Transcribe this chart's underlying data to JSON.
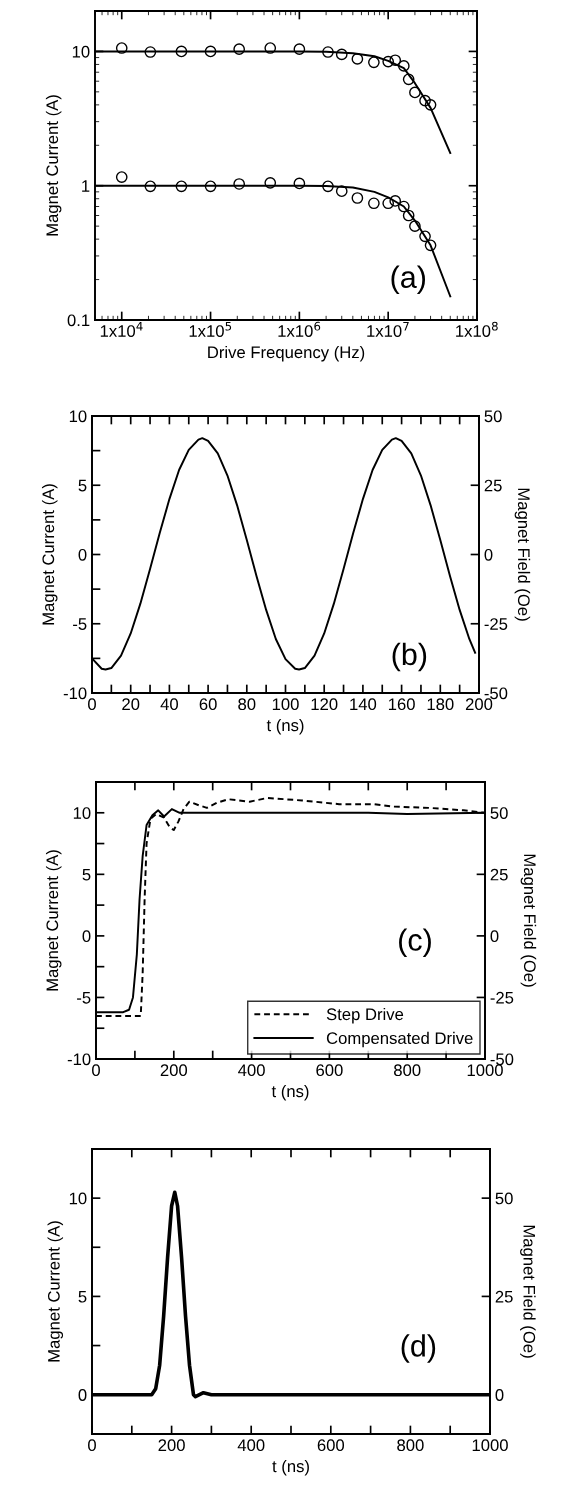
{
  "chart_data": [
    {
      "type": "scatter",
      "log": "xy",
      "xlabel": "Drive Frequency (Hz)",
      "ylabel": "Magnet Current (A)",
      "annotations": [
        "(a)"
      ],
      "xlim": [
        5000,
        100000000
      ],
      "ylim": [
        0.1,
        20
      ],
      "xticks": [
        {
          "value": 10000,
          "label": "1x10$^{4}$"
        },
        {
          "value": 100000,
          "label": "1x10$^{5}$"
        },
        {
          "value": 1000000,
          "label": "1x10$^{6}$"
        },
        {
          "value": 10000000,
          "label": "1x10$^{7}$"
        },
        {
          "value": 100000000,
          "label": "1x10$^{8}$"
        }
      ],
      "yticks": [
        0.1,
        1,
        10
      ],
      "grid": false,
      "legend": false,
      "series": [
        {
          "marker": "circle",
          "color": "#000000",
          "x": [
            10000,
            21000,
            47000,
            100000,
            210000,
            470000,
            1000000,
            2100000,
            3000000,
            4500000,
            6900000,
            10000000,
            12000000,
            15000000,
            17000000,
            20000000,
            26000000,
            30000000
          ],
          "values": [
            10.6,
            9.9,
            10,
            10,
            10.4,
            10.6,
            10.4,
            9.9,
            9.5,
            8.8,
            8.3,
            8.4,
            8.6,
            7.8,
            6.2,
            4.95,
            4.3,
            4.0
          ]
        },
        {
          "marker": "circle",
          "color": "#000000",
          "x": [
            10000,
            21000,
            47000,
            100000,
            210000,
            470000,
            1000000,
            2100000,
            3000000,
            4500000,
            6900000,
            10000000,
            12000000,
            15000000,
            17000000,
            20000000,
            26000000,
            30000000
          ],
          "values": [
            1.16,
            0.99,
            0.99,
            0.99,
            1.03,
            1.05,
            1.04,
            0.99,
            0.91,
            0.81,
            0.74,
            0.74,
            0.77,
            0.7,
            0.6,
            0.5,
            0.42,
            0.36
          ]
        },
        {
          "type": "line",
          "color": "#000000",
          "line_style": "solid",
          "x": [
            5000,
            1000000,
            2000000,
            4000000,
            7000000,
            10000000,
            15000000,
            20000000,
            30000000,
            50000000
          ],
          "values": [
            10,
            10,
            9.95,
            9.7,
            9.2,
            8.5,
            7.5,
            5.8,
            3.8,
            1.75
          ]
        },
        {
          "type": "line",
          "color": "#000000",
          "line_style": "solid",
          "x": [
            5000,
            1000000,
            2000000,
            4000000,
            7000000,
            10000000,
            15000000,
            20000000,
            30000000,
            50000000
          ],
          "values": [
            1,
            1,
            0.995,
            0.97,
            0.9,
            0.82,
            0.7,
            0.55,
            0.36,
            0.15
          ]
        }
      ]
    },
    {
      "type": "line",
      "xlabel": "t (ns)",
      "ylabel": "Magnet Current (A)",
      "y2label": "Magnet Field (Oe)",
      "annotations": [
        "(b)"
      ],
      "xlim": [
        0,
        200
      ],
      "ylim": [
        -10,
        10
      ],
      "y2lim": [
        -50,
        50
      ],
      "xticks": [
        0,
        {
          "value": 10,
          "label": null
        },
        20,
        {
          "value": 30,
          "label": null
        },
        40,
        {
          "value": 50,
          "label": null
        },
        60,
        {
          "value": 70,
          "label": null
        },
        80,
        {
          "value": 90,
          "label": null
        },
        100,
        {
          "value": 110,
          "label": null
        },
        120,
        {
          "value": 130,
          "label": null
        },
        140,
        {
          "value": 150,
          "label": null
        },
        160,
        {
          "value": 170,
          "label": null
        },
        180,
        {
          "value": 190,
          "label": null
        },
        200
      ],
      "yticks": [
        -10,
        {
          "value": -7.5,
          "label": null
        },
        -5,
        {
          "value": -2.5,
          "label": null
        },
        0,
        {
          "value": 2.5,
          "label": null
        },
        5,
        {
          "value": 7.5,
          "label": null
        },
        10
      ],
      "y2ticks": [
        -50,
        -25,
        0,
        25,
        50
      ],
      "grid": false,
      "legend": false,
      "series": [
        {
          "color": "#000000",
          "line_style": "solid",
          "x": [
            0,
            5,
            7,
            10,
            15,
            20,
            25,
            30,
            35,
            40,
            45,
            50,
            55,
            57,
            60,
            65,
            70,
            75,
            80,
            85,
            90,
            95,
            100,
            105,
            107,
            110,
            115,
            120,
            125,
            130,
            135,
            140,
            145,
            150,
            155,
            157,
            160,
            165,
            170,
            175,
            180,
            185,
            190,
            195,
            198
          ],
          "values": [
            -7.5,
            -8.25,
            -8.3,
            -8.2,
            -7.3,
            -5.7,
            -3.55,
            -1.05,
            1.55,
            4.0,
            6.1,
            7.55,
            8.3,
            8.4,
            8.2,
            7.3,
            5.7,
            3.55,
            1.05,
            -1.55,
            -4.0,
            -6.1,
            -7.55,
            -8.25,
            -8.3,
            -8.2,
            -7.3,
            -5.7,
            -3.55,
            -1.05,
            1.55,
            4.0,
            6.1,
            7.55,
            8.3,
            8.4,
            8.2,
            7.3,
            5.7,
            3.55,
            1.05,
            -1.55,
            -4.0,
            -6.1,
            -7.1
          ]
        }
      ]
    },
    {
      "type": "line",
      "xlabel": "t (ns)",
      "ylabel": "Magnet Current (A)",
      "y2label": "Magnet Field (Oe)",
      "annotations": [
        "(c)"
      ],
      "xlim": [
        0,
        1000
      ],
      "ylim": [
        -10,
        12.5
      ],
      "y2lim": [
        -50,
        62.5
      ],
      "xticks": [
        0,
        {
          "value": 100,
          "label": null
        },
        200,
        {
          "value": 300,
          "label": null
        },
        400,
        {
          "value": 500,
          "label": null
        },
        600,
        {
          "value": 700,
          "label": null
        },
        800,
        {
          "value": 900,
          "label": null
        },
        1000
      ],
      "yticks": [
        -10,
        {
          "value": -7.5,
          "label": null
        },
        -5,
        {
          "value": -2.5,
          "label": null
        },
        0,
        {
          "value": 2.5,
          "label": null
        },
        5,
        {
          "value": 7.5,
          "label": null
        },
        10
      ],
      "y2ticks": [
        -50,
        -25,
        0,
        25,
        50
      ],
      "grid": false,
      "legend": "bottom right",
      "series": [
        {
          "name": "Step Drive",
          "color": "#000000",
          "line_style": "dashed",
          "x": [
            0,
            115,
            120,
            125,
            130,
            140,
            155,
            175,
            190,
            200,
            212,
            225,
            240,
            265,
            285,
            310,
            340,
            395,
            440,
            530,
            625,
            715,
            765,
            855,
            945,
            1000
          ],
          "values": [
            -6.5,
            -6.5,
            -3,
            3,
            7.5,
            9.5,
            9.9,
            9.6,
            8.8,
            8.6,
            9.3,
            10.3,
            10.9,
            10.6,
            10.4,
            10.8,
            11.1,
            10.9,
            11.2,
            11.0,
            10.7,
            10.7,
            10.5,
            10.4,
            10.2,
            10.0
          ]
        },
        {
          "name": "Compensated Drive",
          "color": "#000000",
          "line_style": "solid",
          "x": [
            0,
            70,
            85,
            95,
            105,
            112,
            120,
            130,
            145,
            160,
            175,
            195,
            215,
            300,
            500,
            700,
            800,
            1000
          ],
          "values": [
            -6.2,
            -6.2,
            -6.0,
            -5.0,
            -1.5,
            3,
            6.5,
            9.0,
            9.8,
            10.2,
            9.7,
            10.3,
            10.0,
            10.0,
            10.0,
            10.0,
            9.9,
            10.0
          ]
        }
      ]
    },
    {
      "type": "line",
      "xlabel": "t (ns)",
      "ylabel": "Magnet Current (A)",
      "y2label": "Magnet Field (Oe)",
      "annotations": [
        "(d)"
      ],
      "xlim": [
        0,
        1000
      ],
      "ylim": [
        -2,
        12.5
      ],
      "y2lim": [
        -10,
        62.5
      ],
      "xticks": [
        0,
        {
          "value": 100,
          "label": null
        },
        200,
        {
          "value": 300,
          "label": null
        },
        400,
        {
          "value": 500,
          "label": null
        },
        600,
        {
          "value": 700,
          "label": null
        },
        800,
        {
          "value": 900,
          "label": null
        },
        1000
      ],
      "yticks": [
        0,
        {
          "value": 2.5,
          "label": null
        },
        5,
        {
          "value": 7.5,
          "label": null
        },
        10
      ],
      "y2ticks": [
        0,
        25,
        50
      ],
      "grid": false,
      "legend": false,
      "series": [
        {
          "color": "#000000",
          "line_style": "solid",
          "x": [
            0,
            150,
            160,
            170,
            180,
            190,
            200,
            208,
            215,
            225,
            235,
            245,
            255,
            260,
            280,
            300,
            1000
          ],
          "values": [
            0,
            0,
            0.3,
            1.5,
            4,
            7,
            9.6,
            10.3,
            9.6,
            7,
            4,
            1.5,
            0,
            -0.1,
            0.1,
            0,
            0
          ]
        }
      ]
    }
  ]
}
